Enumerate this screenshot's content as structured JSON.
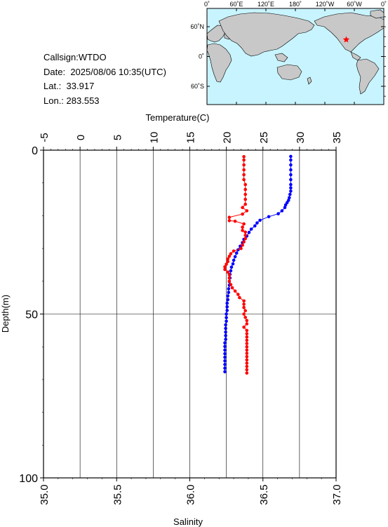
{
  "header": {
    "callsign_label": "Callsign:",
    "callsign": "WTDO",
    "date_label": "Date:",
    "date": "2025/08/06 10:35(UTC)",
    "lat_label": "Lat.:",
    "lat": "33.917",
    "lon_label": "Lon.:",
    "lon": "283.553"
  },
  "map": {
    "lon_labels": [
      "0˚",
      "60˚E",
      "120˚E",
      "180˚",
      "120˚W",
      "60˚W",
      "0˚"
    ],
    "lat_labels": [
      "60˚N",
      "0˚",
      "60˚S"
    ],
    "ocean_color": "#c8f4ff",
    "land_color": "#c8c8c8",
    "marker_color": "#ff0000",
    "station_lon": 283.553,
    "station_lat": 33.917
  },
  "chart_data": {
    "type": "line",
    "top_axis": {
      "label": "Temperature(C)",
      "ticks": [
        "-5",
        "0",
        "5",
        "10",
        "15",
        "20",
        "25",
        "30",
        "35"
      ],
      "range": [
        -5,
        35
      ]
    },
    "bottom_axis": {
      "label": "Salinity",
      "ticks": [
        "35.0",
        "35.5",
        "36.0",
        "36.5",
        "37.0"
      ],
      "range": [
        35.0,
        37.0
      ]
    },
    "y_axis": {
      "label": "Depth(m)",
      "ticks": [
        "0",
        "50",
        "100"
      ],
      "range": [
        0,
        100
      ],
      "inverted": true
    },
    "grid": true,
    "series": [
      {
        "color": "#0000ff",
        "variable": "temperature",
        "points": [
          [
            28.8,
            1.9
          ],
          [
            28.8,
            3.0
          ],
          [
            28.8,
            4.5
          ],
          [
            28.8,
            6.0
          ],
          [
            28.8,
            7.5
          ],
          [
            28.8,
            9.0
          ],
          [
            28.8,
            10.5
          ],
          [
            28.8,
            11.5
          ],
          [
            28.8,
            12.5
          ],
          [
            28.7,
            13.5
          ],
          [
            28.6,
            14.5
          ],
          [
            28.5,
            15.3
          ],
          [
            28.3,
            16.0
          ],
          [
            28.1,
            16.7
          ],
          [
            28.0,
            17.5
          ],
          [
            27.6,
            18.5
          ],
          [
            27.1,
            19.4
          ],
          [
            25.8,
            20.3
          ],
          [
            24.6,
            21.4
          ],
          [
            24.2,
            22.2
          ],
          [
            23.9,
            23.1
          ],
          [
            23.4,
            24.1
          ],
          [
            23.1,
            25.1
          ],
          [
            22.8,
            26.2
          ],
          [
            22.4,
            27.2
          ],
          [
            22.2,
            28.2
          ],
          [
            21.9,
            29.3
          ],
          [
            21.6,
            30.4
          ],
          [
            21.4,
            31.4
          ],
          [
            21.2,
            32.5
          ],
          [
            21.0,
            33.6
          ],
          [
            20.9,
            34.7
          ],
          [
            20.7,
            35.7
          ],
          [
            20.6,
            36.8
          ],
          [
            20.5,
            37.9
          ],
          [
            20.5,
            39.0
          ],
          [
            20.4,
            40.1
          ],
          [
            20.4,
            41.2
          ],
          [
            20.3,
            42.3
          ],
          [
            20.3,
            43.4
          ],
          [
            20.2,
            44.5
          ],
          [
            20.2,
            45.6
          ],
          [
            20.1,
            46.7
          ],
          [
            20.1,
            47.8
          ],
          [
            20.1,
            48.9
          ],
          [
            20.0,
            50.0
          ],
          [
            20.0,
            51.1
          ],
          [
            20.0,
            52.2
          ],
          [
            19.9,
            53.3
          ],
          [
            19.9,
            54.4
          ],
          [
            19.9,
            55.5
          ],
          [
            19.9,
            56.6
          ],
          [
            19.9,
            57.7
          ],
          [
            19.8,
            58.8
          ],
          [
            19.8,
            59.9
          ],
          [
            19.8,
            61.0
          ],
          [
            19.8,
            62.1
          ],
          [
            19.8,
            63.2
          ],
          [
            19.8,
            64.3
          ],
          [
            19.8,
            65.4
          ],
          [
            19.8,
            66.5
          ],
          [
            19.8,
            67.6
          ]
        ]
      },
      {
        "color": "#ff0000",
        "variable": "salinity",
        "points": [
          [
            36.37,
            2.0
          ],
          [
            36.37,
            3.0
          ],
          [
            36.37,
            4.5
          ],
          [
            36.37,
            6.0
          ],
          [
            36.37,
            7.5
          ],
          [
            36.37,
            9.0
          ],
          [
            36.38,
            10.5
          ],
          [
            36.38,
            12.0
          ],
          [
            36.38,
            13.5
          ],
          [
            36.38,
            15.0
          ],
          [
            36.38,
            16.5
          ],
          [
            36.36,
            17.5
          ],
          [
            36.39,
            18.5
          ],
          [
            36.36,
            19.5
          ],
          [
            36.27,
            20.5
          ],
          [
            36.27,
            21.5
          ],
          [
            36.31,
            21.7
          ],
          [
            36.37,
            22.5
          ],
          [
            36.36,
            23.5
          ],
          [
            36.36,
            24.5
          ],
          [
            36.38,
            25.0
          ],
          [
            36.38,
            26.0
          ],
          [
            36.38,
            27.0
          ],
          [
            36.37,
            28.0
          ],
          [
            36.36,
            29.0
          ],
          [
            36.35,
            30.0
          ],
          [
            36.3,
            30.8
          ],
          [
            36.28,
            31.6
          ],
          [
            36.27,
            32.4
          ],
          [
            36.26,
            33.2
          ],
          [
            36.26,
            34.0
          ],
          [
            36.25,
            34.8
          ],
          [
            36.24,
            35.6
          ],
          [
            36.24,
            36.4
          ],
          [
            36.26,
            37.2
          ],
          [
            36.27,
            38.0
          ],
          [
            36.27,
            39.0
          ],
          [
            36.27,
            40.0
          ],
          [
            36.28,
            41.0
          ],
          [
            36.29,
            42.0
          ],
          [
            36.31,
            43.0
          ],
          [
            36.33,
            44.0
          ],
          [
            36.34,
            45.0
          ],
          [
            36.37,
            46.0
          ],
          [
            36.37,
            47.0
          ],
          [
            36.37,
            48.0
          ],
          [
            36.38,
            49.0
          ],
          [
            36.37,
            50.0
          ],
          [
            36.38,
            51.0
          ],
          [
            36.39,
            52.0
          ],
          [
            36.39,
            53.0
          ],
          [
            36.37,
            54.0
          ],
          [
            36.39,
            55.0
          ],
          [
            36.39,
            56.0
          ],
          [
            36.39,
            57.0
          ],
          [
            36.39,
            58.0
          ],
          [
            36.39,
            59.0
          ],
          [
            36.39,
            60.0
          ],
          [
            36.39,
            61.0
          ],
          [
            36.39,
            62.0
          ],
          [
            36.39,
            63.0
          ],
          [
            36.39,
            64.0
          ],
          [
            36.39,
            65.0
          ],
          [
            36.39,
            66.0
          ],
          [
            36.39,
            67.0
          ],
          [
            36.39,
            68.0
          ]
        ]
      }
    ]
  }
}
